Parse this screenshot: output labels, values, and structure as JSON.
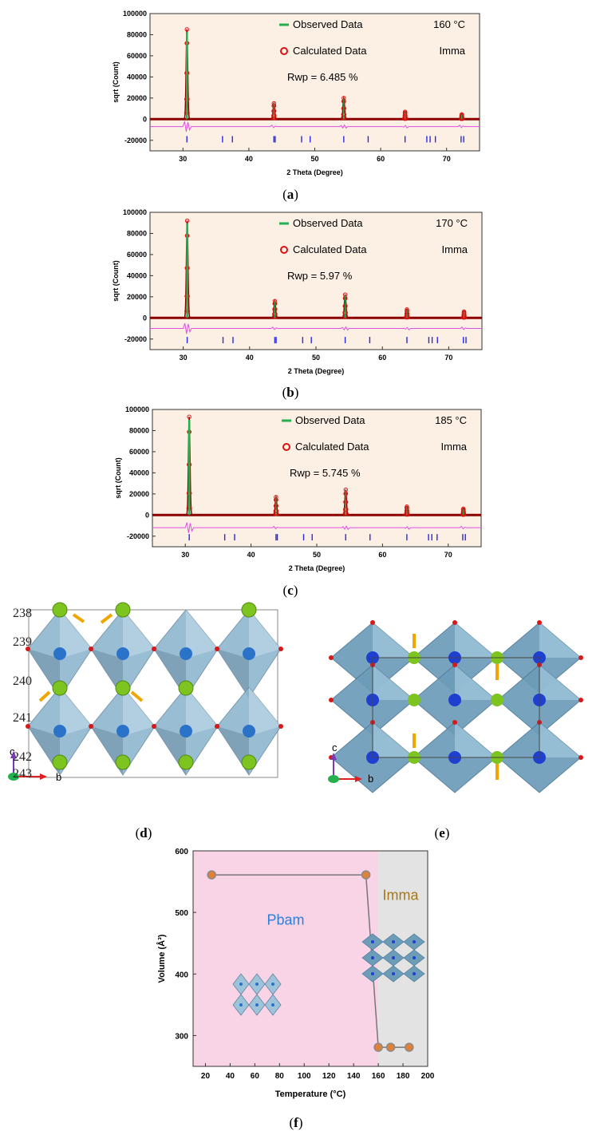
{
  "xrd": [
    {
      "caption": "a",
      "xlabel": "2 Theta (Degree)",
      "ylabel": "sqrt (Count)",
      "legend_observed": "Observed Data",
      "legend_calculated": "Calculated Data",
      "temperature": "160 °C",
      "phase": "Imma",
      "rwp": "Rwp = 6.485 %",
      "peak_heights": [
        85000,
        15000,
        20000,
        7000,
        4500
      ],
      "diff_offset": -7000,
      "tick_rows": [
        -19000
      ]
    },
    {
      "caption": "b",
      "xlabel": "2 Theta (Degree)",
      "ylabel": "sqrt (Count)",
      "legend_observed": "Observed Data",
      "legend_calculated": "Calculated Data",
      "temperature": "170 °C",
      "phase": "Imma",
      "rwp": "Rwp = 5.97 %",
      "peak_heights": [
        92000,
        16000,
        22000,
        8000,
        6000
      ],
      "diff_offset": -10000,
      "tick_rows": [
        -21000
      ]
    },
    {
      "caption": "c",
      "xlabel": "2 Theta (Degree)",
      "ylabel": "sqrt (Count)",
      "legend_observed": "Observed Data",
      "legend_calculated": "Calculated Data",
      "temperature": "185 °C",
      "phase": "Imma",
      "rwp": "Rwp = 5.745 %",
      "peak_heights": [
        93000,
        17000,
        24000,
        8000,
        6000
      ],
      "diff_offset": -12000,
      "tick_rows": [
        -21000
      ]
    }
  ],
  "xrd_axis": {
    "xticks": [
      "30",
      "40",
      "50",
      "60",
      "70"
    ],
    "yticks": [
      "-20000",
      "0",
      "20000",
      "40000",
      "60000",
      "80000",
      "100000"
    ],
    "xlim": [
      25,
      75
    ],
    "ylim": [
      -30000,
      100000
    ],
    "peak_positions": [
      30.6,
      43.8,
      54.4,
      63.7,
      72.3
    ],
    "bragg_ticks": [
      30.6,
      36,
      37.5,
      43.8,
      44,
      48,
      49.3,
      54.4,
      58.1,
      63.7,
      67,
      67.5,
      68.3,
      72.2,
      72.6
    ]
  },
  "structure_d": {
    "caption": "d",
    "row_labels": [
      "238",
      "239",
      "240",
      "241",
      "242",
      "243"
    ],
    "axis_c": "c",
    "axis_b": "b"
  },
  "structure_e": {
    "caption": "e",
    "axis_c": "c",
    "axis_b": "b"
  },
  "chart_data": {
    "type": "scatter",
    "caption": "f",
    "xlabel": "Temperature (°C)",
    "ylabel": "Volume (Å³)",
    "xlim": [
      10,
      200
    ],
    "ylim": [
      250,
      600
    ],
    "xticks": [
      "20",
      "40",
      "60",
      "80",
      "100",
      "120",
      "140",
      "160",
      "180",
      "200"
    ],
    "yticks": [
      "300",
      "400",
      "500",
      "600"
    ],
    "series": [
      {
        "name": "Volume",
        "x": [
          25,
          150,
          160,
          170,
          185
        ],
        "y": [
          561,
          561,
          281,
          281,
          281
        ]
      }
    ],
    "region_pbam": {
      "label": "Pbam",
      "from": 10,
      "to": 160,
      "color": "#f9d3e6"
    },
    "region_imma": {
      "label": "Imma",
      "from": 160,
      "to": 200,
      "color": "#e3e3e3"
    }
  }
}
